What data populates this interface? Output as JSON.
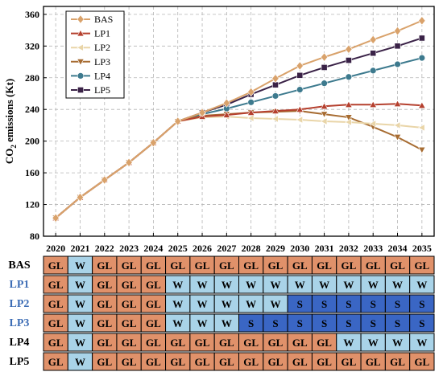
{
  "chart_data": {
    "type": "line",
    "title": "",
    "xlabel": "",
    "ylabel": "CO2 emissions (Kt)",
    "ylabel_parts": {
      "pre": "CO",
      "sub": "2",
      "post": " emissions (Kt)"
    },
    "ylim": [
      80,
      370
    ],
    "yticks": [
      80,
      120,
      160,
      200,
      240,
      280,
      320,
      360
    ],
    "x": [
      2020,
      2021,
      2022,
      2023,
      2024,
      2025,
      2026,
      2027,
      2028,
      2029,
      2030,
      2031,
      2032,
      2033,
      2034,
      2035
    ],
    "grid": true,
    "legend_position": "top-left",
    "series": [
      {
        "name": "BAS",
        "color": "#D9A26B",
        "marker": "diamond",
        "values": [
          103,
          129,
          151,
          173,
          198,
          225,
          236,
          248,
          262,
          279,
          295,
          306,
          316,
          328,
          339,
          352
        ]
      },
      {
        "name": "LP1",
        "color": "#B5402E",
        "marker": "triangle-up",
        "values": [
          103,
          129,
          151,
          173,
          198,
          225,
          231,
          233,
          236,
          238,
          240,
          244,
          246,
          246,
          247,
          245
        ]
      },
      {
        "name": "LP2",
        "color": "#E9D5A8",
        "marker": "triangle-left",
        "values": [
          103,
          129,
          151,
          173,
          198,
          225,
          230,
          231,
          229,
          228,
          227,
          225,
          224,
          222,
          220,
          217
        ]
      },
      {
        "name": "LP3",
        "color": "#A76C32",
        "marker": "triangle-down",
        "values": [
          103,
          129,
          151,
          173,
          198,
          225,
          232,
          234,
          236,
          237,
          238,
          234,
          230,
          218,
          205,
          189
        ]
      },
      {
        "name": "LP4",
        "color": "#3D7A8E",
        "marker": "circle",
        "values": [
          103,
          129,
          151,
          173,
          198,
          225,
          234,
          241,
          249,
          257,
          265,
          273,
          281,
          289,
          297,
          305
        ]
      },
      {
        "name": "LP5",
        "color": "#3A2247",
        "marker": "square",
        "values": [
          103,
          129,
          151,
          173,
          198,
          225,
          236,
          246,
          259,
          271,
          283,
          293,
          302,
          311,
          320,
          330
        ]
      }
    ]
  },
  "strategy_table": {
    "row_label_colors": {
      "LP1": "#3D6DB5",
      "LP2": "#3D6DB5",
      "LP3": "#3D6DB5"
    },
    "cell_colors": {
      "GL": "#E0916A",
      "W": "#A9D3E8",
      "S": "#3A66C4"
    },
    "rows": [
      {
        "label": "BAS",
        "cells": [
          "GL",
          "W",
          "GL",
          "GL",
          "GL",
          "GL",
          "GL",
          "GL",
          "GL",
          "GL",
          "GL",
          "GL",
          "GL",
          "GL",
          "GL",
          "GL"
        ]
      },
      {
        "label": "LP1",
        "cells": [
          "GL",
          "W",
          "GL",
          "GL",
          "GL",
          "W",
          "W",
          "W",
          "W",
          "W",
          "W",
          "W",
          "W",
          "W",
          "W",
          "W"
        ]
      },
      {
        "label": "LP2",
        "cells": [
          "GL",
          "W",
          "GL",
          "GL",
          "GL",
          "W",
          "W",
          "W",
          "W",
          "W",
          "S",
          "S",
          "S",
          "S",
          "S",
          "S"
        ]
      },
      {
        "label": "LP3",
        "cells": [
          "GL",
          "W",
          "GL",
          "GL",
          "GL",
          "W",
          "W",
          "W",
          "S",
          "S",
          "S",
          "S",
          "S",
          "S",
          "S",
          "S"
        ]
      },
      {
        "label": "LP4",
        "cells": [
          "GL",
          "W",
          "GL",
          "GL",
          "GL",
          "GL",
          "GL",
          "GL",
          "GL",
          "GL",
          "GL",
          "GL",
          "W",
          "W",
          "W",
          "W"
        ]
      },
      {
        "label": "LP5",
        "cells": [
          "GL",
          "W",
          "GL",
          "GL",
          "GL",
          "GL",
          "GL",
          "GL",
          "GL",
          "GL",
          "GL",
          "GL",
          "GL",
          "GL",
          "GL",
          "GL"
        ]
      }
    ]
  }
}
